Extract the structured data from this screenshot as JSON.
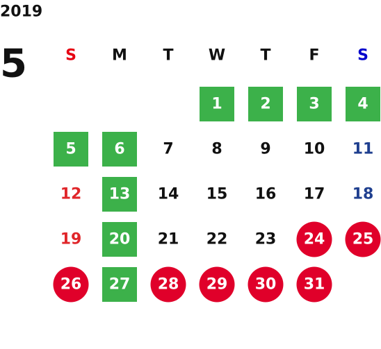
{
  "year": "2019",
  "month": "5",
  "weekdays": [
    "S",
    "M",
    "T",
    "W",
    "T",
    "F",
    "S"
  ],
  "weeks": [
    [
      null,
      null,
      null,
      {
        "label": "1",
        "mark": "square"
      },
      {
        "label": "2",
        "mark": "square"
      },
      {
        "label": "3",
        "mark": "square"
      },
      {
        "label": "4",
        "mark": "square"
      }
    ],
    [
      {
        "label": "5",
        "mark": "square"
      },
      {
        "label": "6",
        "mark": "square"
      },
      {
        "label": "7",
        "mark": null
      },
      {
        "label": "8",
        "mark": null
      },
      {
        "label": "9",
        "mark": null
      },
      {
        "label": "10",
        "mark": null
      },
      {
        "label": "11",
        "mark": null
      }
    ],
    [
      {
        "label": "12",
        "mark": null
      },
      {
        "label": "13",
        "mark": "square"
      },
      {
        "label": "14",
        "mark": null
      },
      {
        "label": "15",
        "mark": null
      },
      {
        "label": "16",
        "mark": null
      },
      {
        "label": "17",
        "mark": null
      },
      {
        "label": "18",
        "mark": null
      }
    ],
    [
      {
        "label": "19",
        "mark": null
      },
      {
        "label": "20",
        "mark": "square"
      },
      {
        "label": "21",
        "mark": null
      },
      {
        "label": "22",
        "mark": null
      },
      {
        "label": "23",
        "mark": null
      },
      {
        "label": "24",
        "mark": "circle"
      },
      {
        "label": "25",
        "mark": "circle"
      }
    ],
    [
      {
        "label": "26",
        "mark": "circle"
      },
      {
        "label": "27",
        "mark": "square"
      },
      {
        "label": "28",
        "mark": "circle"
      },
      {
        "label": "29",
        "mark": "circle"
      },
      {
        "label": "30",
        "mark": "circle"
      },
      {
        "label": "31",
        "mark": "circle"
      },
      null
    ]
  ]
}
